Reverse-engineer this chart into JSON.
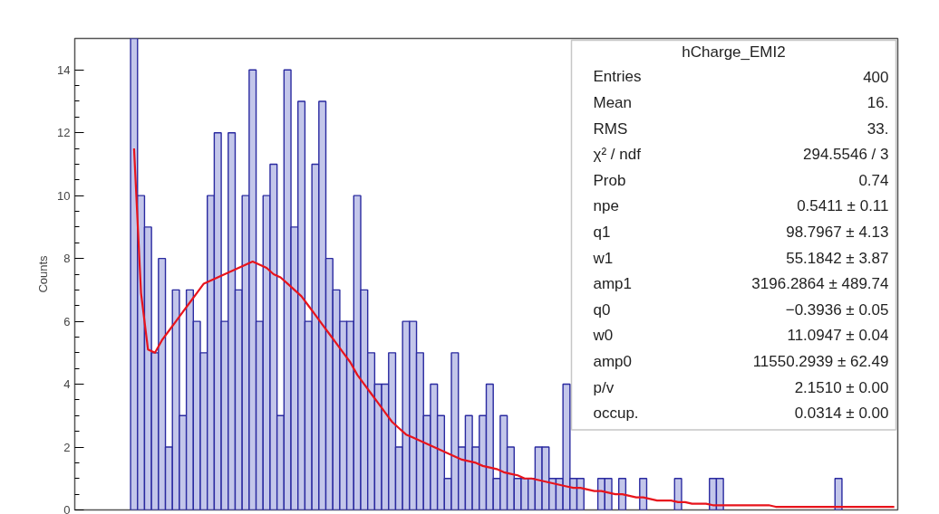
{
  "chart_data": {
    "type": "bar",
    "ylabel": "Counts",
    "categories": [
      null,
      null,
      null,
      null,
      null,
      null,
      null,
      null,
      null,
      null,
      null,
      null,
      null,
      null,
      null,
      null,
      null,
      null,
      null,
      null,
      null,
      null,
      null,
      null,
      null,
      null,
      null,
      null,
      null,
      null,
      null,
      null,
      null,
      null,
      null,
      null,
      null,
      null,
      null,
      null,
      null,
      null,
      null,
      null,
      null,
      null,
      null,
      null,
      null,
      null,
      null,
      null,
      null,
      null,
      null,
      null,
      null,
      null,
      null,
      null,
      null,
      null,
      null,
      null,
      null,
      null,
      null,
      null,
      null,
      null,
      null,
      null,
      null,
      null,
      null,
      null,
      null,
      null,
      null,
      null,
      null,
      null,
      null,
      null,
      null,
      null,
      null,
      null,
      null,
      null,
      null,
      null,
      null,
      null,
      null,
      null,
      null,
      null,
      null,
      null,
      null,
      null,
      null,
      null,
      null,
      null,
      null,
      null,
      null,
      null
    ],
    "series": [
      {
        "color": "#2a2aa0",
        "values": [
          15,
          10,
          9,
          5,
          8,
          2,
          7,
          3,
          7,
          6,
          5,
          10,
          12,
          6,
          12,
          7,
          10,
          14,
          6,
          10,
          11,
          3,
          14,
          9,
          13,
          6,
          11,
          13,
          8,
          7,
          6,
          6,
          10,
          7,
          5,
          4,
          4,
          5,
          2,
          6,
          6,
          5,
          3,
          4,
          3,
          1,
          5,
          2,
          3,
          2,
          3,
          4,
          1,
          3,
          2,
          1,
          1,
          1,
          2,
          2,
          1,
          1,
          4,
          1,
          1,
          0,
          0,
          1,
          1,
          0,
          1,
          0,
          0,
          1,
          0,
          0,
          0,
          0,
          1,
          0,
          0,
          0,
          0,
          1,
          1,
          0,
          0,
          0,
          0,
          0,
          0,
          0,
          0,
          0,
          0,
          0,
          0,
          0,
          0,
          0,
          0,
          1,
          0,
          0,
          0,
          0,
          0,
          0,
          0,
          0
        ]
      },
      {
        "type": "line",
        "color": "#e8141c",
        "values": [
          11.5,
          6.9,
          5.1,
          5.0,
          5.4,
          5.7,
          6.0,
          6.3,
          6.6,
          6.9,
          7.2,
          7.3,
          7.4,
          7.5,
          7.6,
          7.7,
          7.8,
          7.9,
          7.8,
          7.7,
          7.5,
          7.4,
          7.2,
          7.0,
          6.8,
          6.5,
          6.2,
          5.9,
          5.6,
          5.3,
          5.0,
          4.7,
          4.3,
          4.0,
          3.7,
          3.4,
          3.1,
          2.8,
          2.6,
          2.4,
          2.3,
          2.2,
          2.1,
          2.0,
          1.9,
          1.8,
          1.7,
          1.6,
          1.55,
          1.5,
          1.4,
          1.35,
          1.3,
          1.2,
          1.15,
          1.1,
          1.0,
          1.0,
          0.95,
          0.9,
          0.85,
          0.8,
          0.75,
          0.7,
          0.7,
          0.65,
          0.6,
          0.6,
          0.55,
          0.5,
          0.5,
          0.45,
          0.4,
          0.4,
          0.35,
          0.3,
          0.3,
          0.3,
          0.25,
          0.25,
          0.2,
          0.2,
          0.2,
          0.15,
          0.15,
          0.15,
          0.15,
          0.15,
          0.15,
          0.15,
          0.15,
          0.15,
          0.1,
          0.1,
          0.1,
          0.1,
          0.1,
          0.1,
          0.1,
          0.1,
          0.1,
          0.1,
          0.1,
          0.1,
          0.1,
          0.1,
          0.1,
          0.1,
          0.1,
          0.1
        ]
      }
    ],
    "ylim": [
      0,
      15
    ],
    "yticks": [
      0,
      2,
      4,
      6,
      8,
      10,
      12,
      14
    ],
    "tick_labels": "y",
    "grid": false,
    "annotations": [
      "hCharge_EMI2",
      "Entries",
      "400",
      "Mean",
      "16.",
      "RMS",
      "33.",
      "χ² / ndf",
      "294.5546 / 3",
      "Prob",
      "0.74",
      "npe",
      "0.5411 ± 0.11",
      "q1",
      "98.7967 ± 4.13",
      "w1",
      "55.1842 ± 3.87",
      "amp1",
      "3196.2864 ± 489.74",
      "q0",
      "−0.3936 ± 0.05",
      "w0",
      "11.0947 ± 0.04",
      "amp0",
      "11550.2939 ± 62.49",
      "p/v",
      "2.1510 ± 0.00",
      "occup.",
      "0.0314 ± 0.00"
    ]
  }
}
